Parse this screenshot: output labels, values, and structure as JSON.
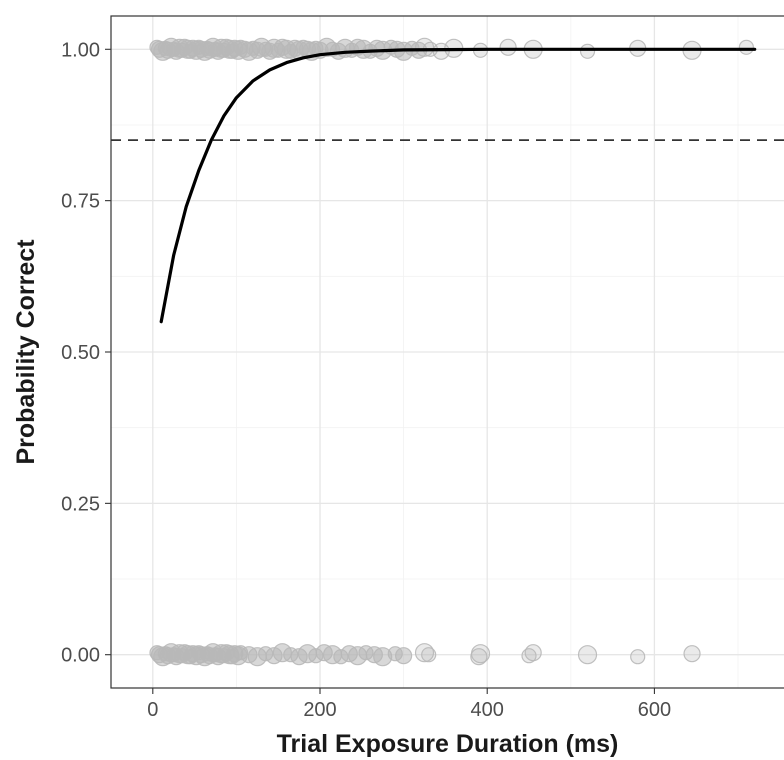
{
  "chart_data": {
    "type": "scatter",
    "title": "",
    "xlabel": "Trial Exposure Duration (ms)",
    "ylabel": "Probability Correct",
    "xlim": [
      -50,
      755
    ],
    "ylim": [
      -0.055,
      1.055
    ],
    "x_ticks": [
      0,
      200,
      400,
      600
    ],
    "x_tick_labels": [
      "0",
      "200",
      "400",
      "600"
    ],
    "y_ticks": [
      0.0,
      0.25,
      0.5,
      0.75,
      1.0
    ],
    "y_tick_labels": [
      "0.00",
      "0.25",
      "0.50",
      "0.75",
      "1.00"
    ],
    "grid": true,
    "legend": "none",
    "threshold_line": {
      "y": 0.85,
      "style": "dashed",
      "color": "#333333"
    },
    "fitted_curve": {
      "type": "line",
      "color": "#000000",
      "x": [
        10,
        25,
        40,
        55,
        70,
        85,
        100,
        120,
        140,
        160,
        180,
        200,
        230,
        260,
        300,
        350,
        400,
        500,
        600,
        700,
        720
      ],
      "y": [
        0.55,
        0.66,
        0.74,
        0.8,
        0.85,
        0.89,
        0.92,
        0.948,
        0.966,
        0.978,
        0.986,
        0.991,
        0.995,
        0.997,
        0.999,
        0.9995,
        1.0,
        1.0,
        1.0,
        1.0,
        1.0
      ]
    },
    "series": [
      {
        "y": 1,
        "color": "#b8b8b8",
        "x": [
          5,
          8,
          12,
          15,
          18,
          22,
          25,
          28,
          32,
          35,
          38,
          42,
          45,
          48,
          52,
          55,
          58,
          62,
          65,
          68,
          72,
          75,
          78,
          82,
          85,
          88,
          92,
          95,
          98,
          102,
          105,
          110,
          115,
          120,
          125,
          130,
          135,
          140,
          145,
          150,
          155,
          160,
          165,
          170,
          175,
          180,
          185,
          190,
          195,
          200,
          208,
          215,
          222,
          230,
          238,
          245,
          252,
          260,
          268,
          275,
          285,
          292,
          300,
          310,
          318,
          325,
          332,
          345,
          360,
          392,
          425,
          455,
          520,
          580,
          645,
          710
        ]
      },
      {
        "y": 0,
        "color": "#b8b8b8",
        "x": [
          5,
          8,
          12,
          15,
          18,
          22,
          25,
          28,
          32,
          35,
          38,
          42,
          45,
          48,
          52,
          55,
          58,
          62,
          65,
          68,
          72,
          75,
          78,
          82,
          85,
          88,
          92,
          95,
          98,
          102,
          105,
          115,
          125,
          135,
          145,
          155,
          165,
          175,
          185,
          195,
          205,
          215,
          225,
          235,
          245,
          255,
          265,
          275,
          290,
          300,
          325,
          330,
          390,
          392,
          450,
          455,
          520,
          580,
          645
        ]
      }
    ]
  }
}
